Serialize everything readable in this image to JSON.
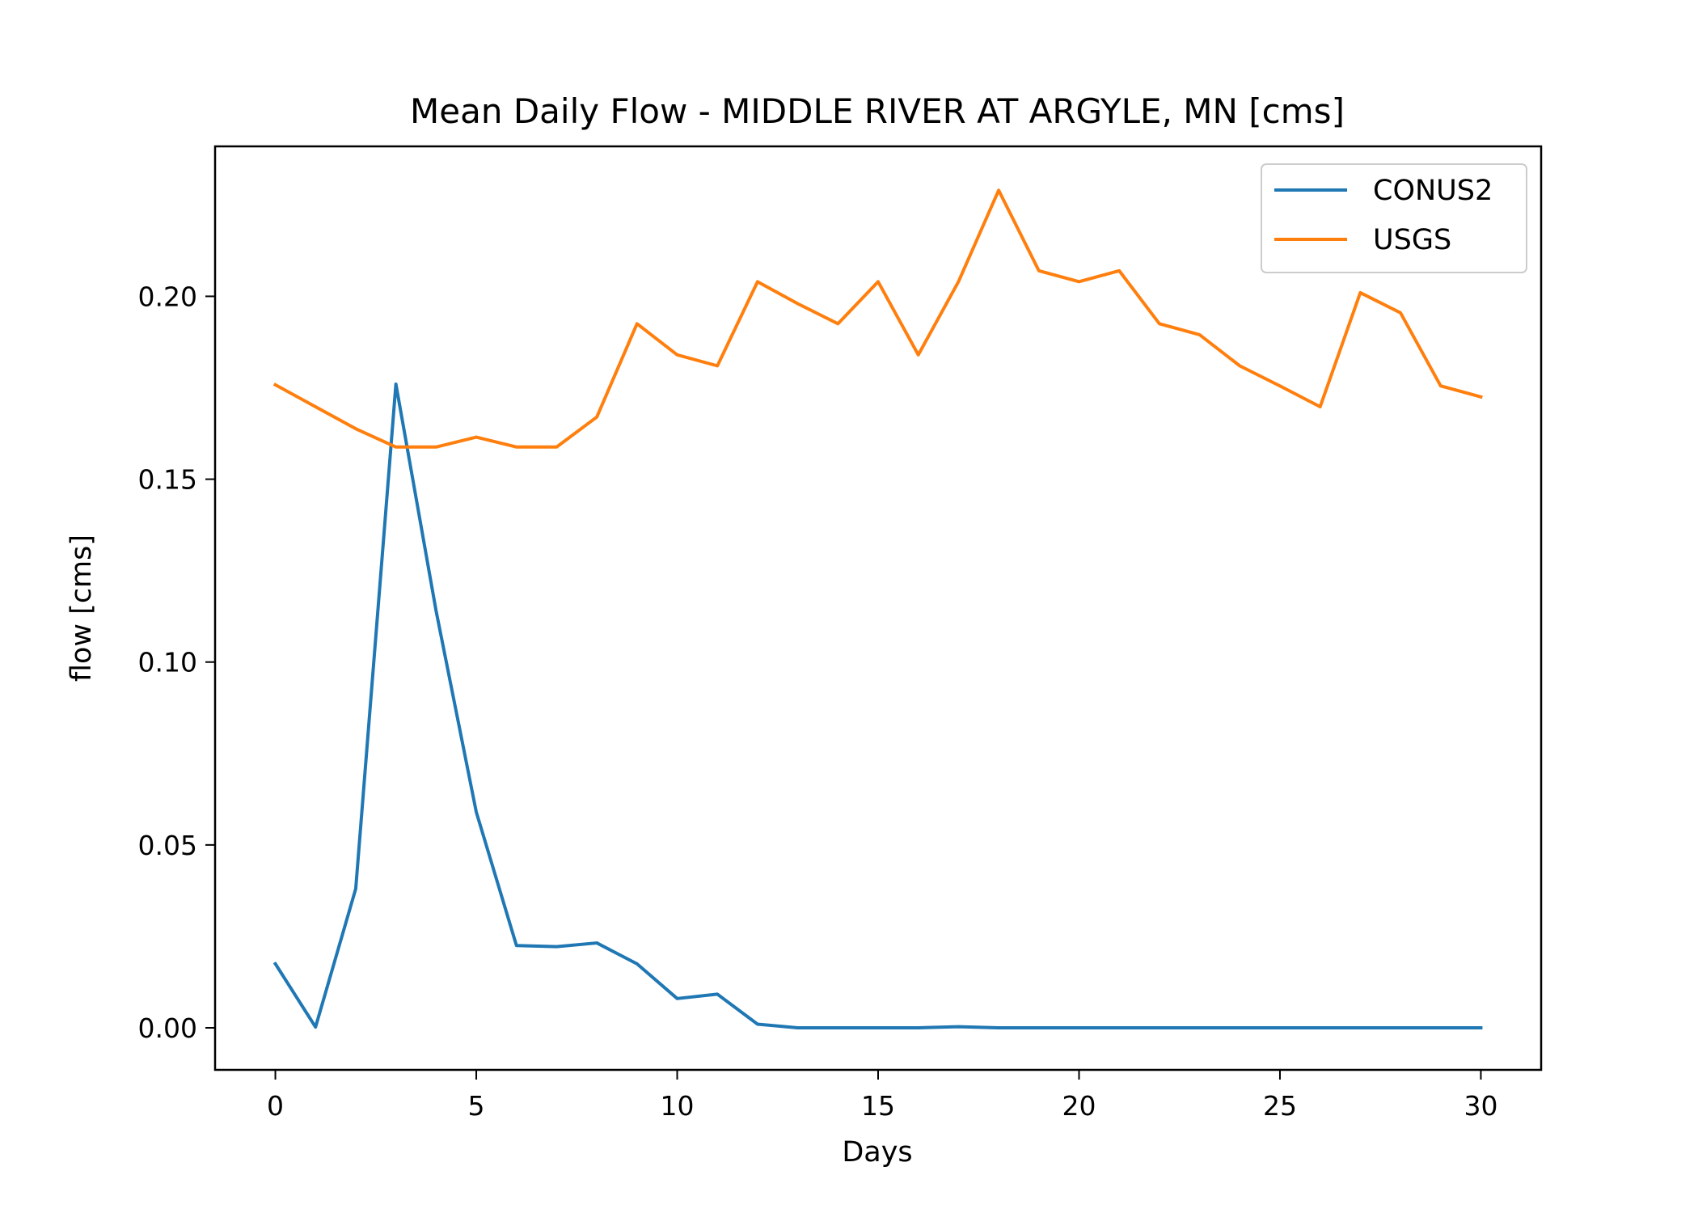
{
  "chart_data": {
    "type": "line",
    "title": "Mean Daily Flow - MIDDLE RIVER AT ARGYLE, MN [cms]",
    "xlabel": "Days",
    "ylabel": "flow [cms]",
    "xlim": [
      -1.5,
      31.5
    ],
    "ylim": [
      -0.0115,
      0.241
    ],
    "xticks": [
      0,
      5,
      10,
      15,
      20,
      25,
      30
    ],
    "xtick_labels": [
      "0",
      "5",
      "10",
      "15",
      "20",
      "25",
      "30"
    ],
    "yticks": [
      0.0,
      0.05,
      0.1,
      0.15,
      0.2
    ],
    "ytick_labels": [
      "0.00",
      "0.05",
      "0.10",
      "0.15",
      "0.20"
    ],
    "grid": false,
    "legend_position": "top-right",
    "x": [
      0,
      1,
      2,
      3,
      4,
      5,
      6,
      7,
      8,
      9,
      10,
      11,
      12,
      13,
      14,
      15,
      16,
      17,
      18,
      19,
      20,
      21,
      22,
      23,
      24,
      25,
      26,
      27,
      28,
      29,
      30
    ],
    "series": [
      {
        "name": "CONUS2",
        "color": "#1f77b4",
        "values": [
          0.0175,
          0.0002,
          0.038,
          0.176,
          0.114,
          0.059,
          0.0225,
          0.0222,
          0.0232,
          0.0175,
          0.008,
          0.0092,
          0.001,
          0.0,
          0.0,
          0.0,
          0.0,
          0.0003,
          0.0,
          0.0,
          0.0,
          0.0,
          0.0,
          0.0,
          0.0,
          0.0,
          0.0,
          0.0,
          0.0,
          0.0,
          0.0
        ]
      },
      {
        "name": "USGS",
        "color": "#ff7f0e",
        "values": [
          0.1758,
          0.1698,
          0.1638,
          0.1588,
          0.1588,
          0.1615,
          0.1588,
          0.1588,
          0.167,
          0.1925,
          0.184,
          0.181,
          0.204,
          0.198,
          0.1925,
          0.204,
          0.184,
          0.204,
          0.229,
          0.207,
          0.204,
          0.207,
          0.1925,
          0.1895,
          0.181,
          0.1755,
          0.1698,
          0.201,
          0.1955,
          0.1755,
          0.1725
        ]
      }
    ]
  }
}
